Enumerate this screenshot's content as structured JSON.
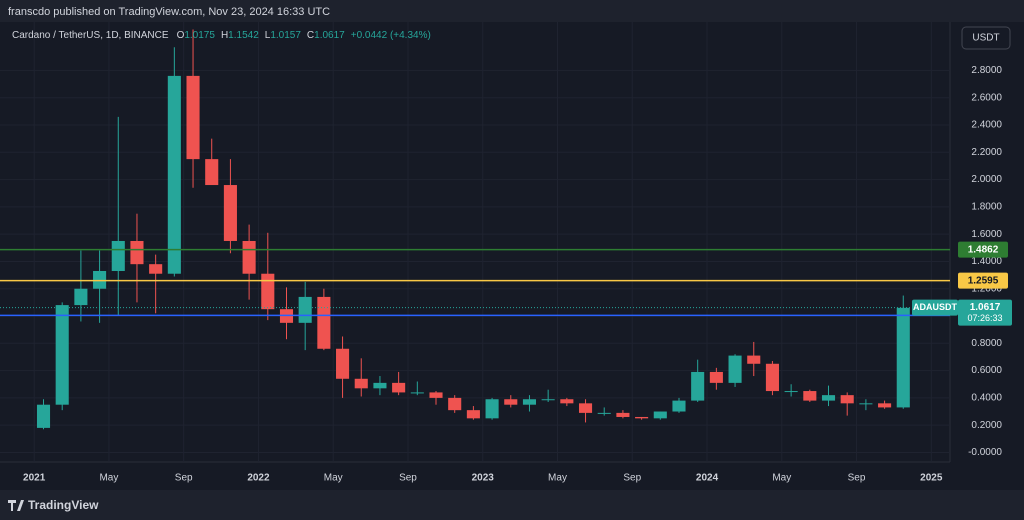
{
  "header": {
    "publisher": "franscdo published on TradingView.com, Nov 23, 2024 16:33 UTC"
  },
  "toolbar": {
    "currency": "USDT"
  },
  "footer": {
    "brand": "TradingView"
  },
  "chart_data": {
    "type": "candlestick",
    "symbol": "Cardano / TetherUS, 1D, BINANCE",
    "ohlc_legend": [
      {
        "label": "O",
        "value": "1.0175"
      },
      {
        "label": "H",
        "value": "1.1542"
      },
      {
        "label": "L",
        "value": "1.0157"
      },
      {
        "label": "C",
        "value": "1.0617"
      }
    ],
    "change": "+0.0442 (+4.34%)",
    "x": [
      0.5,
      1.5,
      2.5,
      3.5,
      4.5,
      5.5,
      6.5,
      7.5,
      8.5,
      9.5,
      10.5,
      11.5,
      12.5,
      13.5,
      14.5,
      15.5,
      16.5,
      17.5,
      18.5,
      19.5,
      20.5,
      21.5,
      22.5,
      23.5,
      24.5,
      25.5,
      26.5,
      27.5,
      28.5,
      29.5,
      30.5,
      31.5,
      32.5,
      33.5,
      34.5,
      35.5,
      36.5,
      37.5,
      38.5,
      39.5,
      40.5,
      41.5,
      42.5,
      43.5,
      44.5,
      45.5,
      46.5
    ],
    "open": [
      0.18,
      0.35,
      1.08,
      1.2,
      1.33,
      1.55,
      1.38,
      1.31,
      2.76,
      2.15,
      1.96,
      1.55,
      1.31,
      1.05,
      0.95,
      1.14,
      0.76,
      0.54,
      0.47,
      0.51,
      0.44,
      0.44,
      0.4,
      0.31,
      0.25,
      0.39,
      0.35,
      0.39,
      0.39,
      0.36,
      0.29,
      0.29,
      0.26,
      0.25,
      0.3,
      0.38,
      0.59,
      0.51,
      0.71,
      0.65,
      0.45,
      0.45,
      0.38,
      0.42,
      0.36,
      0.36,
      0.33
    ],
    "high": [
      0.39,
      1.1,
      1.48,
      1.48,
      2.46,
      1.75,
      1.45,
      2.97,
      3.1,
      2.3,
      2.15,
      1.67,
      1.61,
      1.21,
      1.25,
      1.2,
      0.85,
      0.69,
      0.56,
      0.59,
      0.52,
      0.45,
      0.42,
      0.34,
      0.4,
      0.42,
      0.42,
      0.46,
      0.4,
      0.39,
      0.33,
      0.31,
      0.26,
      0.3,
      0.4,
      0.68,
      0.62,
      0.72,
      0.81,
      0.67,
      0.5,
      0.46,
      0.49,
      0.44,
      0.39,
      0.38,
      1.15
    ],
    "low": [
      0.17,
      0.31,
      0.96,
      0.95,
      1.0,
      1.1,
      1.02,
      1.29,
      1.94,
      1.99,
      1.46,
      1.12,
      0.97,
      0.83,
      0.75,
      0.75,
      0.4,
      0.41,
      0.42,
      0.42,
      0.42,
      0.35,
      0.29,
      0.24,
      0.24,
      0.33,
      0.3,
      0.37,
      0.34,
      0.22,
      0.27,
      0.25,
      0.24,
      0.24,
      0.29,
      0.37,
      0.46,
      0.48,
      0.56,
      0.42,
      0.41,
      0.37,
      0.34,
      0.27,
      0.31,
      0.32,
      0.32
    ],
    "close": [
      0.35,
      1.08,
      1.2,
      1.33,
      1.55,
      1.38,
      1.31,
      2.76,
      2.15,
      1.96,
      1.55,
      1.31,
      1.05,
      0.95,
      1.14,
      0.76,
      0.54,
      0.47,
      0.51,
      0.44,
      0.44,
      0.4,
      0.31,
      0.25,
      0.39,
      0.35,
      0.39,
      0.39,
      0.36,
      0.29,
      0.29,
      0.26,
      0.25,
      0.3,
      0.38,
      0.59,
      0.51,
      0.71,
      0.65,
      0.45,
      0.45,
      0.38,
      0.42,
      0.36,
      0.36,
      0.33,
      1.06
    ],
    "up_color": "#26a69a",
    "down_color": "#ef5350",
    "xlim": [
      -1.4,
      49
    ],
    "ylim": [
      -0.07,
      3.155
    ],
    "xticks": [
      {
        "value": 0,
        "label": "2021"
      },
      {
        "value": 4,
        "label": "May"
      },
      {
        "value": 8,
        "label": "Sep"
      },
      {
        "value": 12,
        "label": "2022"
      },
      {
        "value": 16,
        "label": "May"
      },
      {
        "value": 20,
        "label": "Sep"
      },
      {
        "value": 24,
        "label": "2023"
      },
      {
        "value": 28,
        "label": "May"
      },
      {
        "value": 32,
        "label": "Sep"
      },
      {
        "value": 36,
        "label": "2024"
      },
      {
        "value": 40,
        "label": "May"
      },
      {
        "value": 44,
        "label": "Sep"
      },
      {
        "value": 48,
        "label": "2025"
      }
    ],
    "yticks": [
      {
        "value": 0,
        "label": "-0.0000"
      },
      {
        "value": 0.2,
        "label": "0.2000"
      },
      {
        "value": 0.4,
        "label": "0.4000"
      },
      {
        "value": 0.6,
        "label": "0.6000"
      },
      {
        "value": 0.8,
        "label": "0.8000"
      },
      {
        "value": 1.0,
        "label": "1.0000"
      },
      {
        "value": 1.2,
        "label": "1.2000"
      },
      {
        "value": 1.4,
        "label": "1.4000"
      },
      {
        "value": 1.6,
        "label": "1.6000"
      },
      {
        "value": 1.8,
        "label": "1.8000"
      },
      {
        "value": 2.0,
        "label": "2.0000"
      },
      {
        "value": 2.2,
        "label": "2.2000"
      },
      {
        "value": 2.4,
        "label": "2.4000"
      },
      {
        "value": 2.6,
        "label": "2.6000"
      },
      {
        "value": 2.8,
        "label": "2.8000"
      }
    ],
    "grid": true,
    "levels": [
      {
        "value": 1.4862,
        "color": "#2e7d32"
      },
      {
        "value": 1.2595,
        "color": "#f9c846"
      },
      {
        "value": 1.0047,
        "color": "#2962ff"
      }
    ],
    "last": {
      "name": "ADAUSDT",
      "value": 1.0617,
      "countdown": "07:26:33",
      "color": "#26a69a"
    }
  }
}
